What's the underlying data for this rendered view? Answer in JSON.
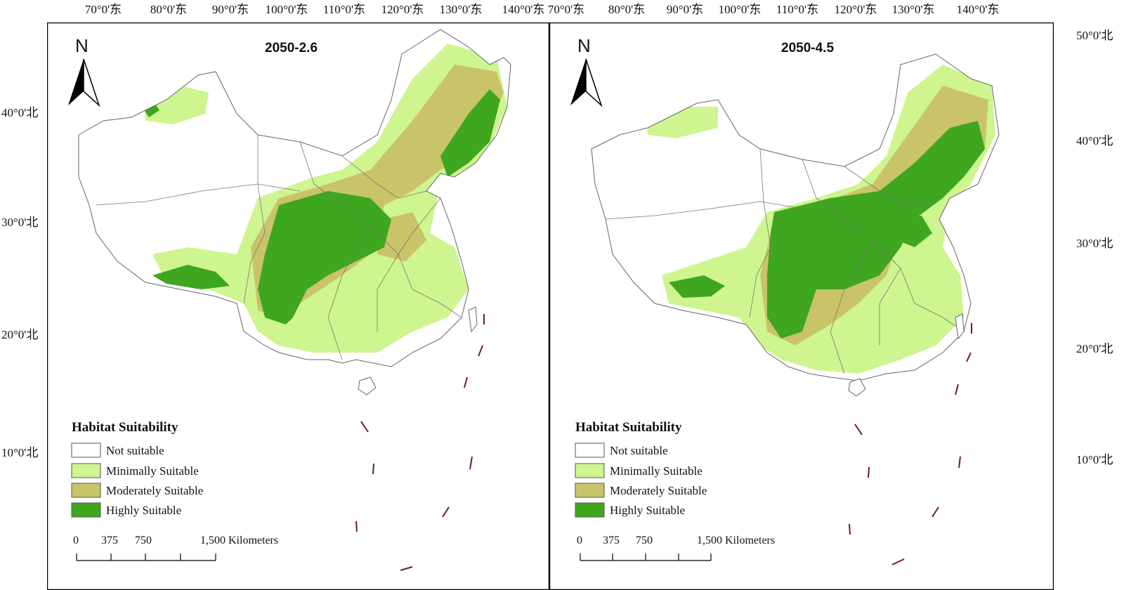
{
  "figure": {
    "top_longitude_labels": [
      "70°0'东",
      "80°0'东",
      "90°0'东",
      "100°0'东",
      "110°0'东",
      "120°0'东",
      "130°0'东",
      "140°0'东"
    ],
    "left_latitude_labels": [
      "40°0'北",
      "30°0'北",
      "20°0'北",
      "10°0'北"
    ],
    "right_latitude_labels": [
      "50°0'北",
      "40°0'北",
      "30°0'北",
      "20°0'北",
      "10°0'北"
    ]
  },
  "panels": [
    {
      "title": "2050-2.6",
      "north": "N",
      "legend": {
        "title": "Habitat Suitability",
        "items": [
          {
            "label": "Not suitable",
            "color": "#ffffff"
          },
          {
            "label": "Minimally Suitable",
            "color": "#cef590"
          },
          {
            "label": "Moderately Suitable",
            "color": "#c9c46a"
          },
          {
            "label": "Highly Suitable",
            "color": "#3fa61f"
          }
        ]
      },
      "scale": {
        "ticks": [
          "0",
          "375",
          "750"
        ],
        "end": "1,500 Kilometers"
      }
    },
    {
      "title": "2050-4.5",
      "north": "N",
      "legend": {
        "title": "Habitat Suitability",
        "items": [
          {
            "label": "Not suitable",
            "color": "#ffffff"
          },
          {
            "label": "Minimally Suitable",
            "color": "#cef590"
          },
          {
            "label": "Moderately Suitable",
            "color": "#c9c46a"
          },
          {
            "label": "Highly Suitable",
            "color": "#3fa61f"
          }
        ]
      },
      "scale": {
        "ticks": [
          "0",
          "375",
          "750"
        ],
        "end": "1,500 Kilometers"
      }
    }
  ],
  "colors": {
    "border": "#666666",
    "frame": "#000000",
    "dash_line": "#6b1a2a"
  }
}
